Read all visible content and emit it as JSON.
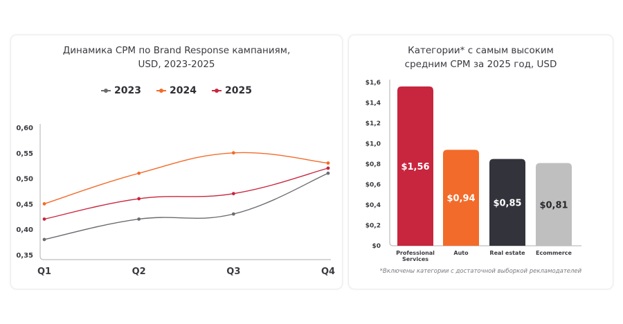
{
  "chart_data": [
    {
      "type": "line",
      "title": "Динамика CPM по Brand Response кампаниям, USD, 2023-2025",
      "title_lines": [
        "Динамика CPM по Brand Response кампаниям,",
        "USD, 2023-2025"
      ],
      "xlabel": "",
      "ylabel": "",
      "categories": [
        "Q1",
        "Q2",
        "Q3",
        "Q4"
      ],
      "ylim": [
        0.35,
        0.6
      ],
      "yticks": [
        0.35,
        0.4,
        0.45,
        0.5,
        0.55,
        0.6
      ],
      "ytick_labels": [
        "0,35",
        "0,40",
        "0,45",
        "0,50",
        "0,55",
        "0,60"
      ],
      "grid": false,
      "legend_position": "top-center",
      "smooth": true,
      "series": [
        {
          "name": "2023",
          "color": "#6b6b70",
          "values": [
            0.38,
            0.42,
            0.43,
            0.51
          ]
        },
        {
          "name": "2024",
          "color": "#f26b2a",
          "values": [
            0.45,
            0.51,
            0.55,
            0.53
          ]
        },
        {
          "name": "2025",
          "color": "#c8253e",
          "values": [
            0.42,
            0.46,
            0.47,
            0.52
          ]
        }
      ]
    },
    {
      "type": "bar",
      "title": "Категории* с самым высоким средним CPM за 2025 год, USD",
      "title_lines": [
        "Категории* с самым высоким",
        "средним CPM за 2025 год, USD"
      ],
      "xlabel": "",
      "ylabel": "",
      "categories": [
        "Professional Services",
        "Auto",
        "Real estate",
        "Ecommerce"
      ],
      "category_lines": [
        [
          "Professional",
          "Services"
        ],
        [
          "Auto"
        ],
        [
          "Real estate"
        ],
        [
          "Ecommerce"
        ]
      ],
      "values": [
        1.56,
        0.94,
        0.85,
        0.81
      ],
      "value_labels": [
        "$1,56",
        "$0,94",
        "$0,85",
        "$0,81"
      ],
      "colors": [
        "#c8253e",
        "#f26b2a",
        "#33333c",
        "#bfbfbf"
      ],
      "label_colors": [
        "#ffffff",
        "#ffffff",
        "#ffffff",
        "#2a2a2e"
      ],
      "ylim": [
        0,
        1.6
      ],
      "yticks": [
        0,
        0.2,
        0.4,
        0.6,
        0.8,
        1.0,
        1.2,
        1.4,
        1.6
      ],
      "ytick_labels": [
        "$0",
        "$0,2",
        "$0,4",
        "$0,6",
        "$0,8",
        "$1,0",
        "$1,2",
        "$1,4",
        "$1,6"
      ],
      "grid": false,
      "footnote": "*Включены категории с достаточной выборкой рекламодателей"
    }
  ]
}
